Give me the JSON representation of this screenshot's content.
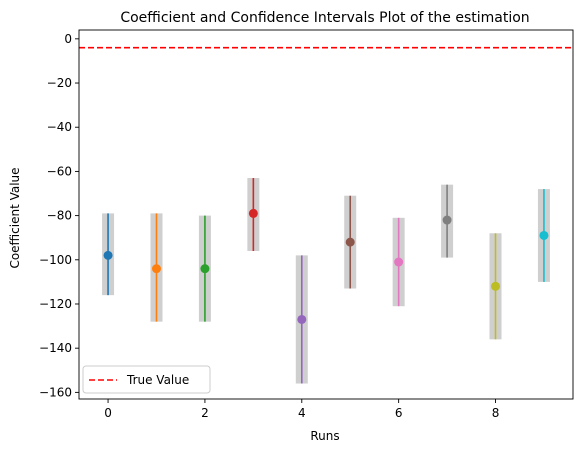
{
  "chart_data": {
    "type": "errorbar",
    "title": "Coefficient and Confidence Intervals Plot of the estimation",
    "xlabel": "Runs",
    "ylabel": "Coefficient Value",
    "xlim": [
      -0.6,
      9.6
    ],
    "ylim": [
      -163,
      4
    ],
    "x_ticks": [
      0,
      2,
      4,
      6,
      8
    ],
    "y_ticks": [
      0,
      -20,
      -40,
      -60,
      -80,
      -100,
      -120,
      -140,
      -160
    ],
    "y_tick_labels": [
      "0",
      "−20",
      "−40",
      "−60",
      "−80",
      "−100",
      "−120",
      "−140",
      "−160"
    ],
    "grid": false,
    "legend_position": "lower-left",
    "true_value": {
      "label": "True Value",
      "y": -4,
      "color": "#ff0000",
      "style": "dashed"
    },
    "interval_band_color": "#bfbfbf",
    "points": [
      {
        "run": 0,
        "estimate": -98,
        "lower": -116,
        "upper": -79,
        "color": "#1f77b4"
      },
      {
        "run": 1,
        "estimate": -104,
        "lower": -128,
        "upper": -79,
        "color": "#ff7f0e"
      },
      {
        "run": 2,
        "estimate": -104,
        "lower": -128,
        "upper": -80,
        "color": "#2ca02c"
      },
      {
        "run": 3,
        "estimate": -79,
        "lower": -96,
        "upper": -63,
        "color": "#d62728"
      },
      {
        "run": 4,
        "estimate": -127,
        "lower": -156,
        "upper": -98,
        "color": "#9467bd"
      },
      {
        "run": 5,
        "estimate": -92,
        "lower": -113,
        "upper": -71,
        "color": "#8c564b"
      },
      {
        "run": 6,
        "estimate": -101,
        "lower": -121,
        "upper": -81,
        "color": "#e377c2"
      },
      {
        "run": 7,
        "estimate": -82,
        "lower": -99,
        "upper": -66,
        "color": "#7f7f7f"
      },
      {
        "run": 8,
        "estimate": -112,
        "lower": -136,
        "upper": -88,
        "color": "#bcbd22"
      },
      {
        "run": 9,
        "estimate": -89,
        "lower": -110,
        "upper": -68,
        "color": "#17becf"
      }
    ]
  }
}
